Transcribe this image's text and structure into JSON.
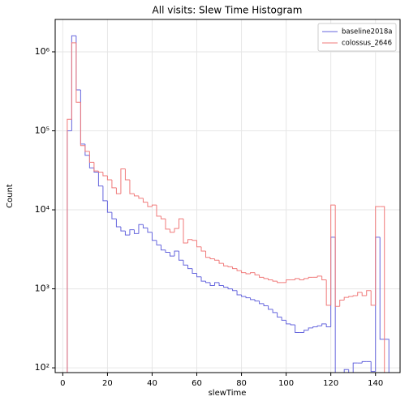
{
  "chart_data": {
    "type": "histogram",
    "title": "All visits: Slew Time Histogram",
    "x_label": "slewTime",
    "y_label": "Count",
    "bins": [
      2,
      4,
      6,
      8,
      10,
      12,
      14,
      16,
      18,
      20,
      22,
      24,
      26,
      28,
      30,
      32,
      34,
      36,
      38,
      40,
      42,
      44,
      46,
      48,
      50,
      52,
      54,
      56,
      58,
      60,
      62,
      64,
      66,
      68,
      70,
      72,
      74,
      76,
      78,
      80,
      82,
      84,
      86,
      88,
      90,
      92,
      94,
      96,
      98,
      100,
      102,
      104,
      106,
      108,
      110,
      112,
      114,
      116,
      118,
      120,
      122,
      124,
      126,
      128,
      130,
      132,
      134,
      136,
      138,
      140,
      142,
      144,
      146
    ],
    "series": [
      {
        "name": "baseline2018a",
        "color": "#6666dd",
        "values": [
          100000,
          1600000,
          330000,
          68000,
          49000,
          34000,
          30000,
          20000,
          13000,
          9300,
          7700,
          6100,
          5400,
          4800,
          5600,
          5000,
          6500,
          5900,
          5200,
          4100,
          3600,
          3100,
          2900,
          2600,
          3000,
          2300,
          2000,
          1800,
          1570,
          1420,
          1250,
          1200,
          1100,
          1200,
          1100,
          1050,
          1000,
          950,
          840,
          800,
          770,
          730,
          700,
          650,
          610,
          550,
          500,
          440,
          400,
          360,
          350,
          280,
          280,
          300,
          320,
          330,
          340,
          360,
          330,
          4500,
          60,
          60,
          95,
          60,
          115,
          115,
          120,
          120,
          90,
          4500,
          230,
          230
        ]
      },
      {
        "name": "colossus_2646",
        "color": "#f07a7a",
        "values": [
          140000,
          1300000,
          230000,
          65000,
          55000,
          40000,
          31000,
          30000,
          27000,
          24000,
          19000,
          16000,
          33000,
          24000,
          16000,
          15000,
          14000,
          12500,
          11000,
          11500,
          8300,
          7700,
          5700,
          5200,
          5800,
          7700,
          3800,
          4200,
          4100,
          3400,
          3000,
          2500,
          2400,
          2300,
          2100,
          1950,
          1900,
          1800,
          1700,
          1600,
          1550,
          1600,
          1500,
          1400,
          1350,
          1300,
          1250,
          1200,
          1200,
          1300,
          1300,
          1350,
          1300,
          1350,
          1400,
          1400,
          1450,
          1300,
          620,
          11500,
          600,
          720,
          780,
          800,
          820,
          900,
          820,
          950,
          620,
          11000,
          11000,
          null
        ]
      }
    ],
    "xlim": [
      -3.4,
      151
    ],
    "ylim": [
      87,
      2570000
    ],
    "log_y": true,
    "xticks": [
      0,
      20,
      40,
      60,
      80,
      100,
      120,
      140
    ],
    "yticks": [
      {
        "value": 100,
        "label": "10²"
      },
      {
        "value": 1000,
        "label": "10³"
      },
      {
        "value": 10000,
        "label": "10⁴"
      },
      {
        "value": 100000,
        "label": "10⁵"
      },
      {
        "value": 1000000,
        "label": "10⁶"
      }
    ],
    "grid": true,
    "legend": "upper right"
  }
}
